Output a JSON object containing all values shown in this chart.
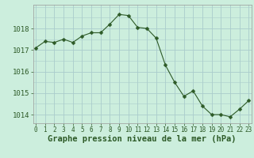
{
  "x": [
    0,
    1,
    2,
    3,
    4,
    5,
    6,
    7,
    8,
    9,
    10,
    11,
    12,
    13,
    14,
    15,
    16,
    17,
    18,
    19,
    20,
    21,
    22,
    23
  ],
  "y": [
    1017.1,
    1017.4,
    1017.35,
    1017.5,
    1017.35,
    1017.65,
    1017.8,
    1017.8,
    1018.2,
    1018.65,
    1018.6,
    1018.05,
    1018.0,
    1017.55,
    1016.3,
    1015.5,
    1014.85,
    1015.1,
    1014.4,
    1014.0,
    1014.0,
    1013.9,
    1014.25,
    1014.65
  ],
  "line_color": "#2d5a27",
  "marker": "D",
  "marker_size": 2.5,
  "bg_color": "#cceedd",
  "grid_color": "#aacccc",
  "title": "Graphe pression niveau de la mer (hPa)",
  "xlabel_ticks": [
    "0",
    "1",
    "2",
    "3",
    "4",
    "5",
    "6",
    "7",
    "8",
    "9",
    "10",
    "11",
    "12",
    "13",
    "14",
    "15",
    "16",
    "17",
    "18",
    "19",
    "20",
    "21",
    "22",
    "23"
  ],
  "yticks": [
    1014,
    1015,
    1016,
    1017,
    1018
  ],
  "ylim": [
    1013.6,
    1019.1
  ],
  "xlim": [
    -0.3,
    23.3
  ],
  "title_fontsize": 7.5,
  "tick_fontsize": 6.5,
  "xtick_fontsize": 5.5
}
